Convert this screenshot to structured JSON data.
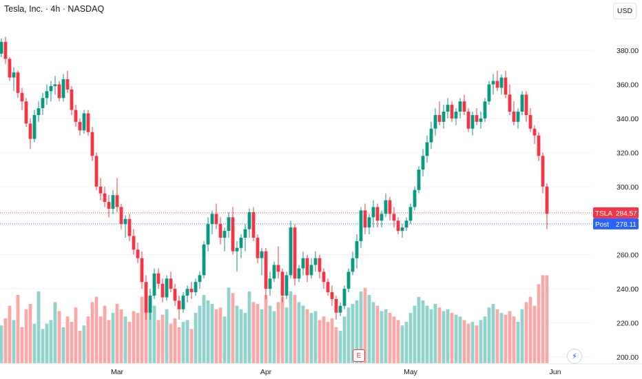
{
  "header": {
    "title": "Tesla, Inc. · 4h · NASDAQ",
    "currency": "USD"
  },
  "colors": {
    "up": "#089981",
    "down": "#f23645",
    "up_vol": "#92d2cc",
    "down_vol": "#f7a9a7",
    "post": "#2962ff"
  },
  "markers": {
    "earnings_label": "E",
    "flash_icon": "lightning-icon"
  },
  "chart_data": {
    "type": "candlestick",
    "ylim": [
      195,
      390
    ],
    "vol_max": 240,
    "y_ticks": [
      "380.00",
      "360.00",
      "340.00",
      "320.00",
      "300.00",
      "280.00",
      "260.00",
      "240.00",
      "220.00",
      "200.00"
    ],
    "y_tick_values": [
      380,
      360,
      340,
      320,
      300,
      280,
      260,
      240,
      220,
      200
    ],
    "x_labels": [
      {
        "label": "Mar",
        "index": 28
      },
      {
        "label": "Apr",
        "index": 64
      },
      {
        "label": "May",
        "index": 99
      },
      {
        "label": "Jun",
        "index": 134
      }
    ],
    "last_price": {
      "name": "TSLA",
      "value": 284.57,
      "display": "284.57"
    },
    "post_price": {
      "name": "Post",
      "value": 278.11,
      "display": "278.11"
    },
    "candles": [
      [
        378,
        387,
        376,
        385,
        105
      ],
      [
        385,
        388,
        372,
        375,
        125
      ],
      [
        375,
        376,
        362,
        364,
        160
      ],
      [
        364,
        370,
        356,
        367,
        120
      ],
      [
        367,
        368,
        352,
        355,
        190
      ],
      [
        355,
        358,
        345,
        350,
        100
      ],
      [
        350,
        352,
        335,
        337,
        150
      ],
      [
        337,
        340,
        322,
        328,
        165
      ],
      [
        328,
        345,
        326,
        342,
        110
      ],
      [
        342,
        350,
        338,
        346,
        200
      ],
      [
        346,
        355,
        342,
        352,
        95
      ],
      [
        352,
        360,
        348,
        356,
        110
      ],
      [
        356,
        362,
        350,
        359,
        120
      ],
      [
        359,
        365,
        354,
        360,
        170
      ],
      [
        360,
        362,
        350,
        352,
        145
      ],
      [
        352,
        366,
        350,
        363,
        100
      ],
      [
        363,
        368,
        355,
        357,
        130
      ],
      [
        357,
        359,
        342,
        345,
        115
      ],
      [
        345,
        348,
        335,
        338,
        155
      ],
      [
        338,
        340,
        330,
        333,
        90
      ],
      [
        333,
        345,
        331,
        343,
        105
      ],
      [
        343,
        345,
        330,
        332,
        130
      ],
      [
        332,
        335,
        315,
        318,
        170
      ],
      [
        318,
        320,
        298,
        300,
        185
      ],
      [
        300,
        305,
        292,
        296,
        130
      ],
      [
        296,
        300,
        288,
        291,
        160
      ],
      [
        291,
        295,
        282,
        287,
        120
      ],
      [
        287,
        298,
        284,
        295,
        140
      ],
      [
        295,
        305,
        285,
        288,
        165
      ],
      [
        288,
        290,
        275,
        278,
        150
      ],
      [
        278,
        283,
        270,
        281,
        130
      ],
      [
        281,
        284,
        268,
        271,
        115
      ],
      [
        271,
        275,
        260,
        263,
        145
      ],
      [
        263,
        267,
        255,
        258,
        140
      ],
      [
        258,
        262,
        240,
        244,
        185
      ],
      [
        244,
        248,
        222,
        226,
        225
      ],
      [
        226,
        240,
        222,
        236,
        170
      ],
      [
        236,
        252,
        234,
        249,
        160
      ],
      [
        249,
        252,
        240,
        243,
        120
      ],
      [
        243,
        246,
        232,
        235,
        135
      ],
      [
        235,
        248,
        233,
        246,
        150
      ],
      [
        246,
        250,
        238,
        240,
        110
      ],
      [
        240,
        243,
        230,
        233,
        125
      ],
      [
        233,
        236,
        222,
        228,
        100
      ],
      [
        228,
        238,
        226,
        236,
        115
      ],
      [
        236,
        242,
        232,
        240,
        120
      ],
      [
        240,
        244,
        234,
        238,
        95
      ],
      [
        238,
        246,
        236,
        244,
        140
      ],
      [
        244,
        250,
        240,
        248,
        160
      ],
      [
        248,
        268,
        246,
        266,
        190
      ],
      [
        266,
        282,
        262,
        278,
        175
      ],
      [
        278,
        286,
        272,
        284,
        165
      ],
      [
        284,
        290,
        275,
        278,
        150
      ],
      [
        278,
        282,
        266,
        270,
        155
      ],
      [
        270,
        276,
        262,
        274,
        130
      ],
      [
        274,
        285,
        270,
        282,
        210
      ],
      [
        282,
        288,
        260,
        262,
        195
      ],
      [
        262,
        268,
        250,
        264,
        160
      ],
      [
        264,
        272,
        258,
        270,
        150
      ],
      [
        270,
        278,
        262,
        275,
        140
      ],
      [
        275,
        287,
        270,
        285,
        200
      ],
      [
        285,
        288,
        268,
        270,
        170
      ],
      [
        270,
        272,
        255,
        258,
        165
      ],
      [
        258,
        264,
        248,
        262,
        150
      ],
      [
        262,
        264,
        234,
        240,
        190
      ],
      [
        240,
        250,
        236,
        246,
        160
      ],
      [
        246,
        256,
        244,
        254,
        145
      ],
      [
        254,
        265,
        246,
        250,
        170
      ],
      [
        250,
        252,
        232,
        236,
        185
      ],
      [
        236,
        250,
        234,
        248,
        155
      ],
      [
        248,
        280,
        246,
        276,
        200
      ],
      [
        276,
        278,
        242,
        246,
        190
      ],
      [
        246,
        254,
        244,
        252,
        170
      ],
      [
        252,
        262,
        248,
        258,
        160
      ],
      [
        258,
        260,
        244,
        248,
        150
      ],
      [
        248,
        258,
        246,
        254,
        140
      ],
      [
        254,
        262,
        250,
        258,
        145
      ],
      [
        258,
        260,
        246,
        250,
        120
      ],
      [
        250,
        252,
        240,
        244,
        130
      ],
      [
        244,
        246,
        236,
        238,
        115
      ],
      [
        238,
        242,
        230,
        234,
        125
      ],
      [
        234,
        236,
        222,
        226,
        100
      ],
      [
        226,
        232,
        224,
        230,
        90
      ],
      [
        230,
        242,
        228,
        240,
        130
      ],
      [
        240,
        252,
        238,
        250,
        155
      ],
      [
        250,
        262,
        248,
        258,
        165
      ],
      [
        258,
        272,
        252,
        268,
        175
      ],
      [
        268,
        288,
        264,
        286,
        200
      ],
      [
        286,
        290,
        272,
        276,
        210
      ],
      [
        276,
        284,
        272,
        282,
        190
      ],
      [
        282,
        292,
        276,
        288,
        170
      ],
      [
        288,
        290,
        276,
        280,
        160
      ],
      [
        280,
        286,
        276,
        284,
        145
      ],
      [
        284,
        296,
        282,
        292,
        150
      ],
      [
        292,
        294,
        280,
        284,
        140
      ],
      [
        284,
        288,
        276,
        280,
        130
      ],
      [
        280,
        282,
        272,
        274,
        120
      ],
      [
        274,
        278,
        270,
        276,
        105
      ],
      [
        276,
        282,
        274,
        280,
        115
      ],
      [
        280,
        290,
        278,
        288,
        140
      ],
      [
        288,
        300,
        286,
        298,
        160
      ],
      [
        298,
        312,
        296,
        310,
        185
      ],
      [
        310,
        322,
        306,
        318,
        175
      ],
      [
        318,
        330,
        314,
        326,
        160
      ],
      [
        326,
        338,
        322,
        334,
        150
      ],
      [
        334,
        346,
        330,
        342,
        165
      ],
      [
        342,
        350,
        336,
        338,
        155
      ],
      [
        338,
        348,
        334,
        344,
        145
      ],
      [
        344,
        352,
        340,
        348,
        150
      ],
      [
        348,
        350,
        338,
        340,
        140
      ],
      [
        340,
        346,
        336,
        344,
        135
      ],
      [
        344,
        352,
        340,
        350,
        130
      ],
      [
        350,
        354,
        342,
        344,
        120
      ],
      [
        344,
        346,
        332,
        334,
        110
      ],
      [
        334,
        344,
        330,
        342,
        115
      ],
      [
        342,
        346,
        336,
        338,
        105
      ],
      [
        338,
        344,
        334,
        340,
        120
      ],
      [
        340,
        352,
        338,
        350,
        130
      ],
      [
        350,
        362,
        348,
        360,
        155
      ],
      [
        360,
        366,
        354,
        362,
        165
      ],
      [
        362,
        368,
        356,
        358,
        150
      ],
      [
        358,
        366,
        354,
        364,
        140
      ],
      [
        364,
        368,
        352,
        354,
        135
      ],
      [
        354,
        360,
        342,
        344,
        145
      ],
      [
        344,
        350,
        336,
        338,
        130
      ],
      [
        338,
        346,
        334,
        344,
        115
      ],
      [
        344,
        356,
        342,
        354,
        150
      ],
      [
        354,
        356,
        338,
        342,
        170
      ],
      [
        342,
        346,
        332,
        334,
        185
      ],
      [
        334,
        336,
        325,
        330,
        160
      ],
      [
        330,
        332,
        315,
        318,
        220
      ],
      [
        318,
        320,
        296,
        300,
        245
      ],
      [
        300,
        302,
        275,
        284,
        245
      ]
    ]
  }
}
